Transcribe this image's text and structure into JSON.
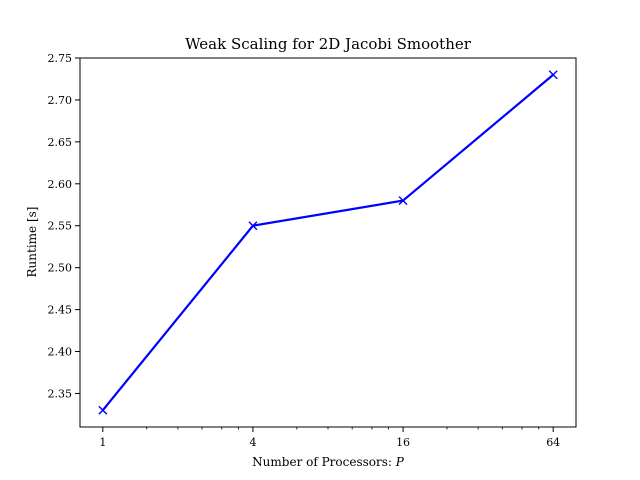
{
  "chart_data": {
    "type": "line",
    "title": "Weak Scaling for 2D Jacobi Smoother",
    "xlabel": "Number of Processors: ",
    "xlabel_var": "P",
    "ylabel": "Runtime [s]",
    "x_scale": "log2",
    "x": [
      1,
      4,
      16,
      64
    ],
    "xticks": [
      "1",
      "4",
      "16",
      "64"
    ],
    "yticks": [
      "2.35",
      "2.40",
      "2.45",
      "2.50",
      "2.55",
      "2.60",
      "2.65",
      "2.70",
      "2.75"
    ],
    "ylim": [
      2.31,
      2.75
    ],
    "xlim": [
      0.81,
      79
    ],
    "grid": false,
    "series": [
      {
        "values": [
          2.33,
          2.55,
          2.58,
          2.73
        ],
        "color": "#0000ff",
        "marker": "x"
      }
    ]
  }
}
